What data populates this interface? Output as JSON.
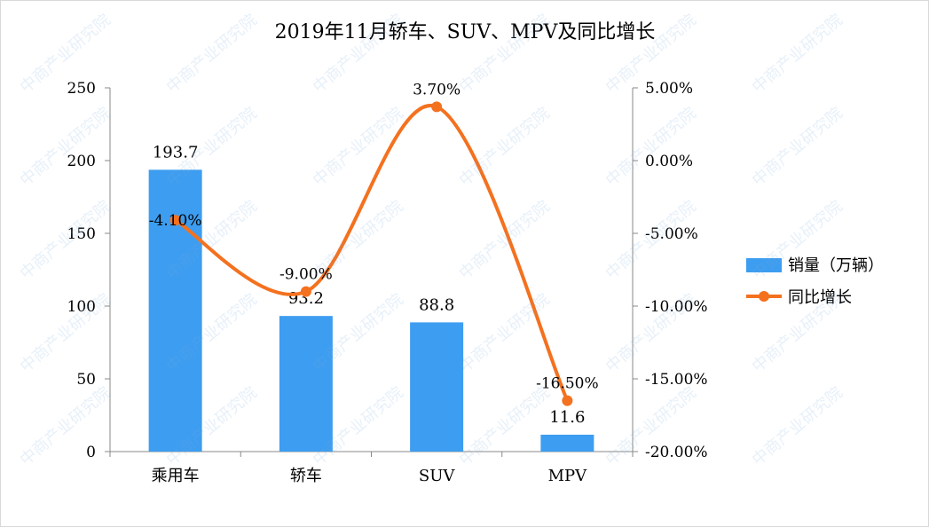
{
  "watermark": "中商产业研究院",
  "chart_data": {
    "type": "bar+line",
    "title": "2019年11月轿车、SUV、MPV及同比增长",
    "categories": [
      "乘用车",
      "轿车",
      "SUV",
      "MPV"
    ],
    "series": [
      {
        "name": "销量（万辆）",
        "type": "bar",
        "axis": "left",
        "color": "#3d9df0",
        "values": [
          193.7,
          93.2,
          88.8,
          11.6
        ],
        "labels": [
          "193.7",
          "93.2",
          "88.8",
          "11.6"
        ]
      },
      {
        "name": "同比增长",
        "type": "line",
        "axis": "right",
        "color": "#f4711f",
        "smooth": true,
        "values": [
          -4.1,
          -9.0,
          3.7,
          -16.5
        ],
        "labels": [
          "-4.10%",
          "-9.00%",
          "3.70%",
          "-16.50%"
        ]
      }
    ],
    "left_axis": {
      "range": [
        0,
        250
      ],
      "ticks": [
        "0",
        "50",
        "100",
        "150",
        "200",
        "250"
      ]
    },
    "right_axis": {
      "range": [
        -20,
        5
      ],
      "ticks": [
        "-20.00%",
        "-15.00%",
        "-10.00%",
        "-5.00%",
        "0.00%",
        "5.00%"
      ]
    },
    "grid": false,
    "legend": "right"
  }
}
